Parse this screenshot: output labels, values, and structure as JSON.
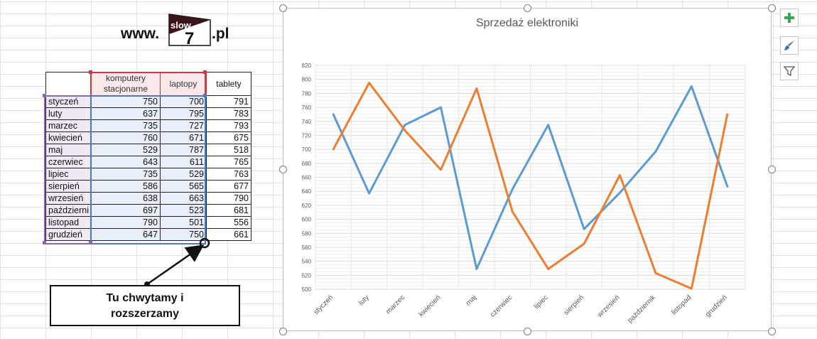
{
  "logo": {
    "prefix": "www.",
    "badge_top": "slow",
    "badge_num": "7",
    "suffix": ".pl"
  },
  "table": {
    "headers": [
      "",
      "komputery stacjonarne",
      "laptopy",
      "tablety"
    ],
    "rows": [
      [
        "styczeń",
        "750",
        "700",
        "791"
      ],
      [
        "luty",
        "637",
        "795",
        "783"
      ],
      [
        "marzec",
        "735",
        "727",
        "793"
      ],
      [
        "kwiecień",
        "760",
        "671",
        "675"
      ],
      [
        "maj",
        "529",
        "787",
        "518"
      ],
      [
        "czerwiec",
        "643",
        "611",
        "765"
      ],
      [
        "lipiec",
        "735",
        "529",
        "763"
      ],
      [
        "sierpień",
        "586",
        "565",
        "677"
      ],
      [
        "wrzesień",
        "638",
        "663",
        "790"
      ],
      [
        "październi",
        "697",
        "523",
        "681"
      ],
      [
        "listopad",
        "790",
        "501",
        "556"
      ],
      [
        "grudzień",
        "647",
        "750",
        "661"
      ]
    ]
  },
  "callout": {
    "line1": "Tu chwytamy i",
    "line2": "rozszerzamy"
  },
  "chart_data": {
    "type": "line",
    "title": "Sprzedaż elektroniki",
    "categories": [
      "styczeń",
      "luty",
      "marzec",
      "kwiecień",
      "maj",
      "czerwiec",
      "lipiec",
      "sierpień",
      "wrzesień",
      "październik",
      "listopad",
      "grudzień"
    ],
    "series": [
      {
        "name": "komputery stacjonarne",
        "color": "#5b9bd5",
        "values": [
          750,
          637,
          735,
          760,
          529,
          643,
          735,
          586,
          638,
          697,
          790,
          647
        ]
      },
      {
        "name": "laptopy",
        "color": "#ed7d31",
        "values": [
          700,
          795,
          727,
          671,
          787,
          611,
          529,
          565,
          663,
          523,
          501,
          750
        ]
      }
    ],
    "ylim": [
      500,
      820
    ],
    "yticks": [
      "500",
      "520",
      "540",
      "560",
      "580",
      "600",
      "620",
      "640",
      "660",
      "680",
      "700",
      "720",
      "740",
      "760",
      "780",
      "800",
      "820"
    ],
    "grid": true,
    "xlabel": "",
    "ylabel": ""
  },
  "chart_buttons": {
    "add": "chart-elements",
    "style": "chart-styles",
    "filter": "chart-filters"
  }
}
